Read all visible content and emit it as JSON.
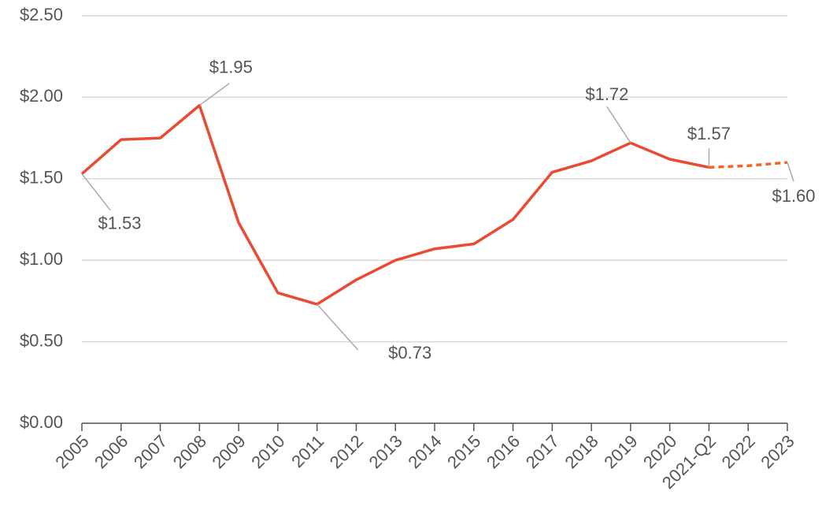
{
  "chart_data": {
    "type": "line",
    "categories": [
      "2005",
      "2006",
      "2007",
      "2008",
      "2009",
      "2010",
      "2011",
      "2012",
      "2013",
      "2014",
      "2015",
      "2016",
      "2017",
      "2018",
      "2019",
      "2020",
      "2021-Q2",
      "2022",
      "2023"
    ],
    "series": [
      {
        "color": "#e84a33",
        "dashed": false,
        "values": [
          1.53,
          1.74,
          1.75,
          1.95,
          1.23,
          0.8,
          0.73,
          0.88,
          1.0,
          1.07,
          1.1,
          1.25,
          1.54,
          1.61,
          1.72,
          1.62,
          1.57,
          null,
          null
        ],
        "value_labels": [
          "$1.53",
          null,
          null,
          "$1.95",
          null,
          null,
          "$0.73",
          null,
          null,
          null,
          null,
          null,
          null,
          null,
          "$1.72",
          null,
          "$1.57",
          null,
          null
        ]
      },
      {
        "color": "#f26522",
        "dashed": true,
        "values": [
          null,
          null,
          null,
          null,
          null,
          null,
          null,
          null,
          null,
          null,
          null,
          null,
          null,
          null,
          null,
          null,
          1.57,
          1.58,
          1.6
        ],
        "value_labels": [
          null,
          null,
          null,
          null,
          null,
          null,
          null,
          null,
          null,
          null,
          null,
          null,
          null,
          null,
          null,
          null,
          null,
          null,
          "$1.60"
        ]
      }
    ],
    "ylim": [
      0,
      2.5
    ],
    "yticks": [
      {
        "value": 0,
        "label": "$0.00"
      },
      {
        "value": 0.5,
        "label": "$0.50"
      },
      {
        "value": 1,
        "label": "$1.00"
      },
      {
        "value": 1.5,
        "label": "$1.50"
      },
      {
        "value": 2,
        "label": "$2.00"
      },
      {
        "value": 2.5,
        "label": "$2.50"
      }
    ],
    "grid": true
  }
}
